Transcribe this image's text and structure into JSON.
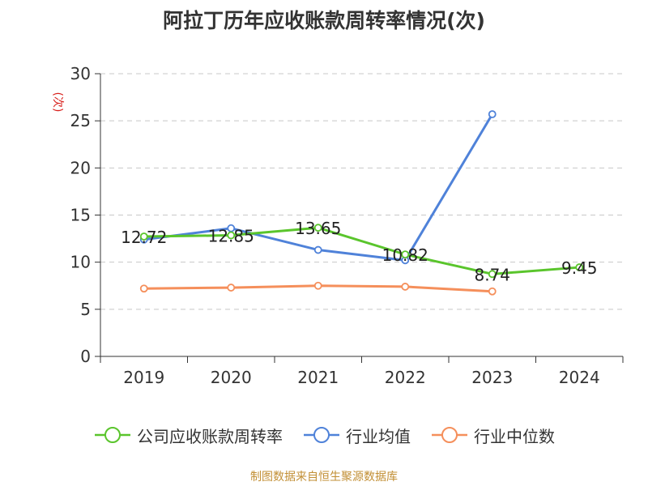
{
  "chart_data": {
    "type": "line",
    "title": "阿拉丁历年应收账款周转率情况(次)",
    "ylabel": "(次)",
    "xlabel": "",
    "categories": [
      "2019",
      "2020",
      "2021",
      "2022",
      "2023",
      "2024"
    ],
    "ylim": [
      0,
      30
    ],
    "yticks": [
      0,
      5,
      10,
      15,
      20,
      25,
      30
    ],
    "grid": true,
    "legend_position": "bottom",
    "series": [
      {
        "name": "公司应收账款周转率",
        "color": "#5ac52c",
        "values": [
          12.72,
          12.85,
          13.65,
          10.82,
          8.74,
          9.45
        ],
        "labels": [
          "12.72",
          "12.85",
          "13.65",
          "10.82",
          "8.74",
          "9.45"
        ]
      },
      {
        "name": "行业均值",
        "color": "#4f82d9",
        "values": [
          12.4,
          13.6,
          11.3,
          10.2,
          25.7,
          null
        ]
      },
      {
        "name": "行业中位数",
        "color": "#f58f5b",
        "values": [
          7.2,
          7.3,
          7.5,
          7.4,
          6.9,
          null
        ]
      }
    ]
  },
  "source": "制图数据来自恒生聚源数据库"
}
